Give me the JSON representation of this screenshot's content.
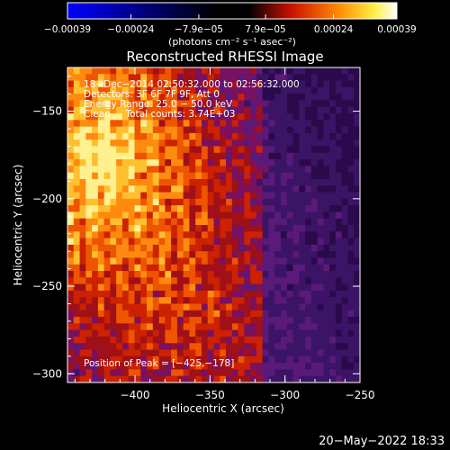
{
  "chart_data": {
    "type": "heatmap",
    "title": "Reconstructed RHESSI Image",
    "xlabel": "Heliocentric X (arcsec)",
    "ylabel": "Heliocentric Y (arcsec)",
    "xlim": [
      -445,
      -250
    ],
    "ylim": [
      -305,
      -125
    ],
    "x_ticks": [
      -400,
      -350,
      -300,
      -250
    ],
    "x_tick_labels": [
      "−400",
      "−350",
      "−300",
      "−250"
    ],
    "y_ticks": [
      -150,
      -200,
      -250,
      -300
    ],
    "y_tick_labels": [
      "−150",
      "−200",
      "−250",
      "−300"
    ],
    "colorbar": {
      "range": [
        -0.00039,
        0.00039
      ],
      "ticks": [
        -0.00039,
        -0.00024,
        -7.9e-05,
        7.9e-05,
        0.00024,
        0.00039
      ],
      "tick_labels": [
        "−0.00039",
        "−0.00024",
        "−7.9e−05",
        "7.9e−05",
        "0.00024",
        "0.00039"
      ],
      "unit_label": "(photons cm⁻² s⁻¹ asec⁻²)",
      "colors": [
        "#0000ff",
        "#000000",
        "#cc1100",
        "#ff8800",
        "#ffee44",
        "#ffffff"
      ]
    },
    "annotations": [
      "18−Dec−2014 02:50:32.000 to 02:56:32.000",
      "Detectors: 3F 6F 7F 9F, Att 0",
      "Energy Range: 25.0 − 50.0 keV",
      "Clean     Total counts: 3.74E+03"
    ],
    "peak_label": "Position of Peak = [−425,−178]",
    "peak": [
      -425,
      -178
    ]
  },
  "footer": {
    "timestamp": "20−May−2022 18:33"
  }
}
